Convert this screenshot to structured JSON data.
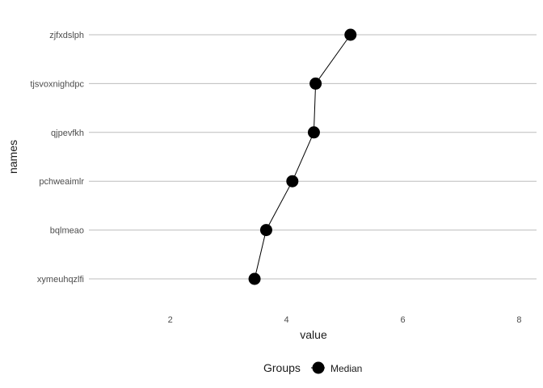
{
  "chart_data": {
    "type": "line",
    "orientation": "horizontal",
    "categories": [
      "zjfxdslph",
      "tjsvoxnighdpc",
      "qjpevfkh",
      "pchweaimlr",
      "bqlmeao",
      "xymeuhqzlfi"
    ],
    "series": [
      {
        "name": "Median",
        "values": [
          5.1,
          4.5,
          4.47,
          4.1,
          3.65,
          3.45
        ]
      }
    ],
    "xlabel": "value",
    "ylabel": "names",
    "xlim": [
      0.6,
      8.3
    ],
    "xticks": [
      2,
      4,
      6,
      8
    ],
    "grid": "horizontal major lines only",
    "legend": {
      "title": "Groups",
      "position": "bottom"
    },
    "colors": {
      "line": "#000000",
      "point": "#000000",
      "grid": "#bdbdbd",
      "tick_text": "#4d4d4d"
    }
  }
}
